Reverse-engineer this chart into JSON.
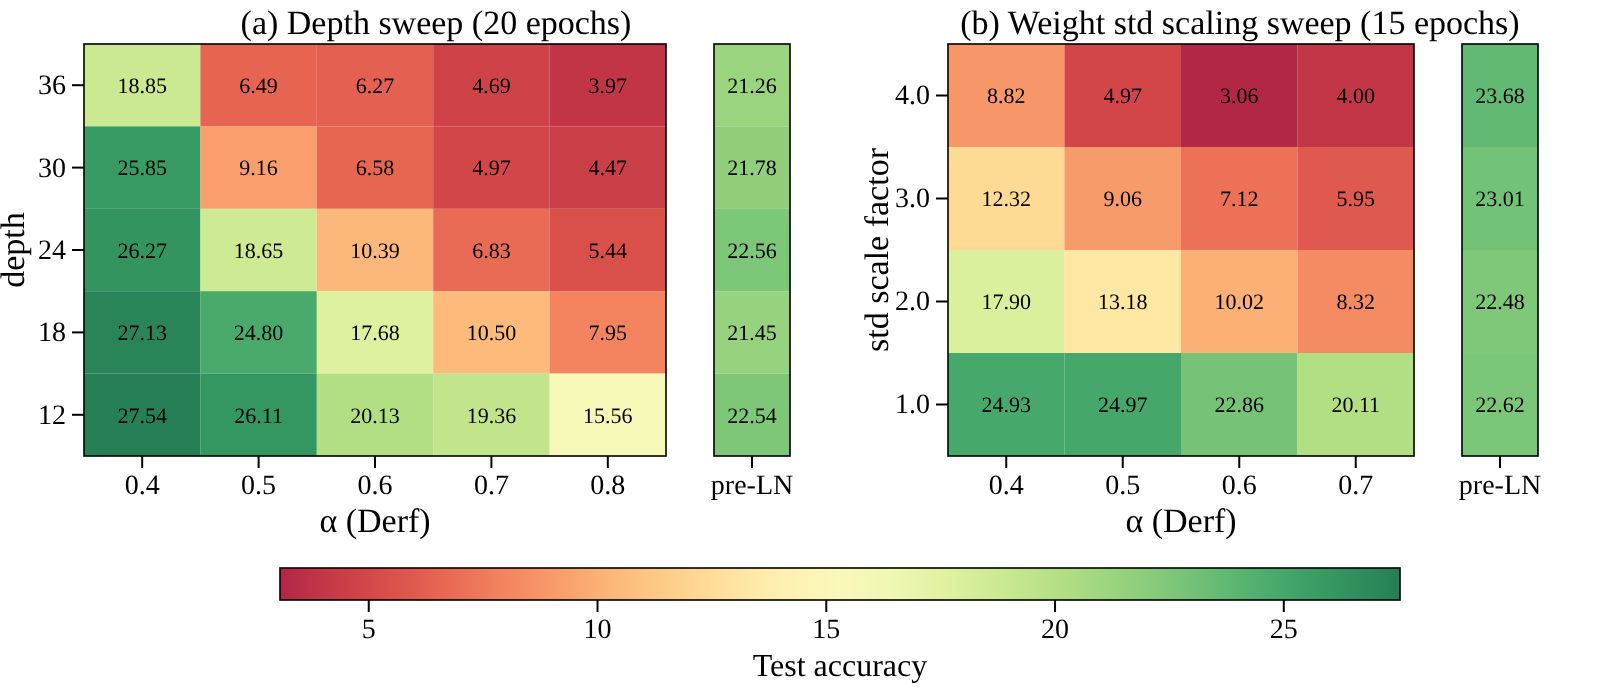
{
  "chart_data": [
    {
      "type": "heatmap",
      "title": "(a) Depth sweep (20 epochs)",
      "xlabel": "α (Derf)",
      "ylabel": "depth",
      "categories": [
        "0.4",
        "0.5",
        "0.6",
        "0.7",
        "0.8"
      ],
      "y_categories": [
        "36",
        "30",
        "24",
        "18",
        "12"
      ],
      "cells": [
        [
          18.85,
          6.49,
          6.27,
          4.69,
          3.97
        ],
        [
          25.85,
          9.16,
          6.58,
          4.97,
          4.47
        ],
        [
          26.27,
          18.65,
          10.39,
          6.83,
          5.44
        ],
        [
          27.13,
          24.8,
          17.68,
          10.5,
          7.95
        ],
        [
          27.54,
          26.11,
          20.13,
          19.36,
          15.56
        ]
      ],
      "cell_labels": [
        [
          "18.85",
          "6.49",
          "6.27",
          "4.69",
          "3.97"
        ],
        [
          "25.85",
          "9.16",
          "6.58",
          "4.97",
          "4.47"
        ],
        [
          "26.27",
          "18.65",
          "10.39",
          "6.83",
          "5.44"
        ],
        [
          "27.13",
          "24.80",
          "17.68",
          "10.50",
          "7.95"
        ],
        [
          "27.54",
          "26.11",
          "20.13",
          "19.36",
          "15.56"
        ]
      ],
      "clim": [
        3.06,
        27.54
      ],
      "cticks": [
        5,
        10,
        15,
        20,
        25
      ],
      "clabel": "Test accuracy"
    },
    {
      "type": "heatmap",
      "categories": [
        "pre-LN"
      ],
      "y_categories": [
        null,
        null,
        null,
        null,
        null
      ],
      "tick_labels": "x",
      "cells": [
        [
          21.26
        ],
        [
          21.78
        ],
        [
          22.56
        ],
        [
          21.45
        ],
        [
          22.54
        ]
      ],
      "cell_labels": [
        [
          "21.26"
        ],
        [
          "21.78"
        ],
        [
          "22.56"
        ],
        [
          "21.45"
        ],
        [
          "22.54"
        ]
      ]
    },
    {
      "type": "heatmap",
      "title": "(b) Weight std scaling sweep (15 epochs)",
      "xlabel": "α (Derf)",
      "ylabel": "std scale factor",
      "categories": [
        "0.4",
        "0.5",
        "0.6",
        "0.7"
      ],
      "y_categories": [
        "4.0",
        "3.0",
        "2.0",
        "1.0"
      ],
      "cells": [
        [
          8.82,
          4.97,
          3.06,
          4.0
        ],
        [
          12.32,
          9.06,
          7.12,
          5.95
        ],
        [
          17.9,
          13.18,
          10.02,
          8.32
        ],
        [
          24.93,
          24.97,
          22.86,
          20.11
        ]
      ],
      "cell_labels": [
        [
          "8.82",
          "4.97",
          "3.06",
          "4.00"
        ],
        [
          "12.32",
          "9.06",
          "7.12",
          "5.95"
        ],
        [
          "17.90",
          "13.18",
          "10.02",
          "8.32"
        ],
        [
          "24.93",
          "24.97",
          "22.86",
          "20.11"
        ]
      ]
    },
    {
      "type": "heatmap",
      "categories": [
        "pre-LN"
      ],
      "y_categories": [
        null,
        null,
        null,
        null
      ],
      "tick_labels": "x",
      "cells": [
        [
          23.68
        ],
        [
          23.01
        ],
        [
          22.48
        ],
        [
          22.62
        ]
      ],
      "cell_labels": [
        [
          "23.68"
        ],
        [
          "23.01"
        ],
        [
          "22.48"
        ],
        [
          "22.62"
        ]
      ]
    }
  ]
}
